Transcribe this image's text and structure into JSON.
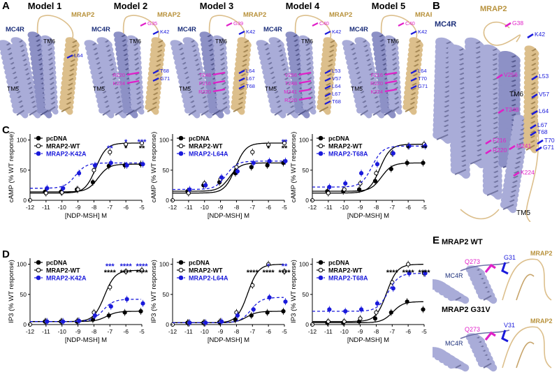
{
  "panel_letters": {
    "a": "A",
    "b": "B",
    "c": "C",
    "d": "D",
    "e": "E"
  },
  "panel_a": {
    "models": [
      {
        "title": "Model 1",
        "tm6": "TM6",
        "tm5": "TM5",
        "mc4r": [],
        "mrap2": [
          {
            "t": "L64",
            "c": "blue"
          }
        ]
      },
      {
        "title": "Model 2",
        "tm6": "TM6",
        "tm5": "TM5",
        "mc4r": [
          {
            "t": "R220",
            "c": "magenta"
          },
          {
            "t": "K224",
            "c": "magenta"
          }
        ],
        "mrap2": [
          {
            "t": "G35",
            "c": "magenta"
          },
          {
            "t": "K42",
            "c": "blue"
          },
          {
            "t": "T68",
            "c": "blue"
          },
          {
            "t": "G71",
            "c": "blue"
          }
        ]
      },
      {
        "title": "Model 3",
        "tm6": "TM6",
        "tm5": "TM5",
        "mc4r": [
          {
            "t": "T248",
            "c": "magenta"
          },
          {
            "t": "F216",
            "c": "magenta"
          },
          {
            "t": "R220",
            "c": "magenta"
          }
        ],
        "mrap2": [
          {
            "t": "G39",
            "c": "magenta"
          },
          {
            "t": "K42",
            "c": "blue"
          },
          {
            "t": "L64",
            "c": "blue"
          },
          {
            "t": "L67",
            "c": "blue"
          },
          {
            "t": "T68",
            "c": "blue"
          }
        ]
      },
      {
        "title": "Model 4",
        "tm6": "TM6",
        "tm5": "TM5",
        "mc4r": [
          {
            "t": "V256",
            "c": "magenta"
          },
          {
            "t": "T248",
            "c": "magenta"
          },
          {
            "t": "M241",
            "c": "magenta"
          },
          {
            "t": "R220",
            "c": "magenta"
          }
        ],
        "mrap2": [
          {
            "t": "C40",
            "c": "magenta"
          },
          {
            "t": "K42",
            "c": "blue"
          },
          {
            "t": "L53",
            "c": "blue"
          },
          {
            "t": "V57",
            "c": "blue"
          },
          {
            "t": "L64",
            "c": "blue"
          },
          {
            "t": "L67",
            "c": "blue"
          },
          {
            "t": "T68",
            "c": "blue"
          }
        ]
      },
      {
        "title": "Model 5",
        "tm6": "TM6",
        "tm5": "TM5",
        "mc4r": [
          {
            "t": "F216",
            "c": "magenta"
          },
          {
            "t": "R220",
            "c": "magenta"
          },
          {
            "t": "K224",
            "c": "magenta"
          }
        ],
        "mrap2": [
          {
            "t": "C40",
            "c": "magenta"
          },
          {
            "t": "K42",
            "c": "blue"
          },
          {
            "t": "L64",
            "c": "blue"
          },
          {
            "t": "T70",
            "c": "blue"
          },
          {
            "t": "G71",
            "c": "blue"
          }
        ]
      }
    ],
    "mc4r_label": "MC4R",
    "mrap2_label": "MRAP2"
  },
  "panel_b": {
    "mc4r_label": "MC4R",
    "mrap2_label": "MRAP2",
    "tm6": "TM6",
    "tm5": "TM5",
    "residues": [
      {
        "t": "G38",
        "c": "magenta"
      },
      {
        "t": "K42",
        "c": "blue"
      },
      {
        "t": "V256",
        "c": "magenta"
      },
      {
        "t": "L53",
        "c": "blue"
      },
      {
        "t": "V57",
        "c": "blue"
      },
      {
        "t": "T248",
        "c": "magenta"
      },
      {
        "t": "L64",
        "c": "blue"
      },
      {
        "t": "L67",
        "c": "blue"
      },
      {
        "t": "T68",
        "c": "blue"
      },
      {
        "t": "F216",
        "c": "magenta"
      },
      {
        "t": "M241",
        "c": "magenta"
      },
      {
        "t": "T70",
        "c": "blue"
      },
      {
        "t": "R220",
        "c": "magenta"
      },
      {
        "t": "G71",
        "c": "blue"
      },
      {
        "t": "K224",
        "c": "magenta"
      }
    ]
  },
  "panel_e": {
    "wt": {
      "title": "MRAP2 WT",
      "mrap2": "MRAP2",
      "mc4r": "MC4R",
      "res_mrap2": "G31",
      "res_mc4r": "Q273"
    },
    "mut": {
      "title": "MRAP2 G31V",
      "mrap2": "MRAP2",
      "mc4r": "MC4R",
      "res_mrap2": "V31",
      "res_mc4r": "Q273"
    }
  },
  "colors": {
    "blue": "#1a1adb",
    "magenta": "#e020c8",
    "helix_mc4r": "#a9acd8",
    "helix_mrap2": "#dcbf8c",
    "black": "#000000"
  },
  "chart_data": [
    {
      "type": "line",
      "panel": "C",
      "ylabel": "cAMP (% WT response)",
      "xlabel": "[NDP-MSH] M",
      "xticks": [
        "-12",
        "-11",
        "-10",
        "-9",
        "-8",
        "-7",
        "-6",
        "-5"
      ],
      "xlim": [
        -12,
        -5
      ],
      "yticks": [
        "0",
        "50",
        "100"
      ],
      "ylim": [
        0,
        100
      ],
      "series": [
        {
          "name": "pcDNA",
          "x": [
            -11,
            -10,
            -9,
            -8,
            -7,
            -6,
            -5
          ],
          "values": [
            14,
            14,
            18,
            30,
            57,
            58,
            60
          ]
        },
        {
          "name": "MRAP2-WT",
          "x": [
            -11,
            -10,
            -9,
            -8,
            -7,
            -6,
            -5
          ],
          "values": [
            12,
            13,
            18,
            50,
            80,
            93,
            95
          ]
        },
        {
          "name": "MRAP2-K42A",
          "x": [
            -11,
            -10,
            -9,
            -8,
            -7,
            -6,
            -5
          ],
          "values": [
            20,
            20,
            45,
            58,
            62,
            58,
            60
          ]
        }
      ],
      "annotations": [
        {
          "x": -7,
          "text": "**",
          "color": "blue"
        },
        {
          "x": -6,
          "text": "*",
          "color": "blue"
        },
        {
          "x": -6,
          "text": "*",
          "color": "black"
        },
        {
          "x": -5,
          "text": "***",
          "color": "blue"
        },
        {
          "x": -5,
          "text": "**",
          "color": "black"
        }
      ]
    },
    {
      "type": "line",
      "panel": "C",
      "ylabel": "cAMP (% WT response)",
      "xlabel": "[NDP-MSH] M",
      "xticks": [
        "-12",
        "-11",
        "-10",
        "-9",
        "-8",
        "-7",
        "-6",
        "-5"
      ],
      "xlim": [
        -12,
        -5
      ],
      "yticks": [
        "0",
        "50",
        "100"
      ],
      "ylim": [
        0,
        100
      ],
      "series": [
        {
          "name": "pcDNA",
          "x": [
            -11,
            -10,
            -9,
            -8,
            -7,
            -6,
            -5
          ],
          "values": [
            15,
            25,
            30,
            45,
            55,
            58,
            62
          ]
        },
        {
          "name": "MRAP2-WT",
          "x": [
            -11,
            -10,
            -9,
            -8,
            -7,
            -6,
            -5
          ],
          "values": [
            12,
            28,
            35,
            55,
            80,
            92,
            95
          ]
        },
        {
          "name": "MRAP2-L64A",
          "x": [
            -11,
            -10,
            -9,
            -8,
            -7,
            -6,
            -5
          ],
          "values": [
            18,
            25,
            38,
            48,
            62,
            65,
            65
          ]
        }
      ],
      "annotations": [
        {
          "x": -6,
          "text": "*",
          "color": "black"
        },
        {
          "x": -5,
          "text": "**",
          "color": "blue"
        },
        {
          "x": -5,
          "text": "**",
          "color": "black"
        }
      ]
    },
    {
      "type": "line",
      "panel": "C",
      "ylabel": "cAMP (% WT response)",
      "xlabel": "[NDP-MSH] M",
      "xticks": [
        "-12",
        "-11",
        "-10",
        "-9",
        "-8",
        "-7",
        "-6",
        "-5"
      ],
      "xlim": [
        -12,
        -5
      ],
      "yticks": [
        "0",
        "50",
        "100"
      ],
      "ylim": [
        0,
        100
      ],
      "series": [
        {
          "name": "pcDNA",
          "x": [
            -11,
            -10,
            -9,
            -8,
            -7,
            -6,
            -5
          ],
          "values": [
            15,
            15,
            18,
            32,
            52,
            62,
            62
          ]
        },
        {
          "name": "MRAP2-WT",
          "x": [
            -11,
            -10,
            -9,
            -8,
            -7,
            -6,
            -5
          ],
          "values": [
            12,
            18,
            28,
            45,
            78,
            90,
            93
          ]
        },
        {
          "name": "MRAP2-T68A",
          "x": [
            -11,
            -10,
            -9,
            -8,
            -7,
            -6,
            -5
          ],
          "values": [
            22,
            28,
            45,
            60,
            78,
            90,
            90
          ]
        }
      ],
      "annotations": [
        {
          "x": -6,
          "text": "*",
          "color": "black"
        },
        {
          "x": -5,
          "text": "**",
          "color": "black"
        }
      ]
    },
    {
      "type": "line",
      "panel": "D",
      "ylabel": "IP3 (% WT response)",
      "xlabel": "[NDP-MSH] M",
      "xticks": [
        "-12",
        "-11",
        "-10",
        "-9",
        "-8",
        "-7",
        "-6",
        "-5"
      ],
      "xlim": [
        -12,
        -5
      ],
      "yticks": [
        "0",
        "50",
        "100"
      ],
      "ylim": [
        0,
        100
      ],
      "series": [
        {
          "name": "pcDNA",
          "x": [
            -11,
            -10,
            -9,
            -8,
            -7,
            -6,
            -5
          ],
          "values": [
            5,
            5,
            5,
            8,
            15,
            20,
            22
          ]
        },
        {
          "name": "MRAP2-WT",
          "x": [
            -11,
            -10,
            -9,
            -8,
            -7,
            -6,
            -5
          ],
          "values": [
            5,
            5,
            6,
            20,
            62,
            88,
            90
          ]
        },
        {
          "name": "MRAP2-K42A",
          "x": [
            -11,
            -10,
            -9,
            -8,
            -7,
            -6,
            -5
          ],
          "values": [
            5,
            5,
            6,
            15,
            30,
            42,
            35
          ]
        }
      ],
      "annotations": [
        {
          "x": -7,
          "text": "***",
          "color": "blue"
        },
        {
          "x": -7,
          "text": "****",
          "color": "black"
        },
        {
          "x": -6,
          "text": "****",
          "color": "blue"
        },
        {
          "x": -6,
          "text": "****",
          "color": "black"
        },
        {
          "x": -5,
          "text": "****",
          "color": "blue"
        },
        {
          "x": -5,
          "text": "****",
          "color": "black"
        }
      ]
    },
    {
      "type": "line",
      "panel": "D",
      "ylabel": "IP3 (% WT response)",
      "xlabel": "[NDP-MSH] M",
      "xticks": [
        "-12",
        "-11",
        "-10",
        "-9",
        "-8",
        "-7",
        "-6",
        "-5"
      ],
      "xlim": [
        -12,
        -5
      ],
      "yticks": [
        "0",
        "50",
        "100"
      ],
      "ylim": [
        0,
        100
      ],
      "series": [
        {
          "name": "pcDNA",
          "x": [
            -11,
            -10,
            -9,
            -8,
            -7,
            -6,
            -5
          ],
          "values": [
            3,
            3,
            4,
            8,
            15,
            20,
            22
          ]
        },
        {
          "name": "MRAP2-WT",
          "x": [
            -11,
            -10,
            -9,
            -8,
            -7,
            -6,
            -5
          ],
          "values": [
            3,
            3,
            5,
            20,
            65,
            100,
            88
          ]
        },
        {
          "name": "MRAP2-L64A",
          "x": [
            -11,
            -10,
            -9,
            -8,
            -7,
            -6,
            -5
          ],
          "values": [
            3,
            3,
            5,
            15,
            25,
            45,
            38
          ]
        }
      ],
      "annotations": [
        {
          "x": -7,
          "text": "****",
          "color": "black"
        },
        {
          "x": -6,
          "text": "*",
          "color": "blue"
        },
        {
          "x": -6,
          "text": "****",
          "color": "black"
        },
        {
          "x": -5,
          "text": "**",
          "color": "blue"
        },
        {
          "x": -5,
          "text": "****",
          "color": "black"
        }
      ]
    },
    {
      "type": "line",
      "panel": "D",
      "ylabel": "IP3 (% WT response)",
      "xlabel": "[NDP-MSH] M",
      "xticks": [
        "-12",
        "-11",
        "-10",
        "-9",
        "-8",
        "-7",
        "-6",
        "-5"
      ],
      "xlim": [
        -12,
        -5
      ],
      "yticks": [
        "0",
        "50",
        "100"
      ],
      "ylim": [
        0,
        100
      ],
      "series": [
        {
          "name": "pcDNA",
          "x": [
            -11,
            -10,
            -9,
            -8,
            -7,
            -6,
            -5
          ],
          "values": [
            3,
            3,
            5,
            10,
            20,
            38,
            25
          ]
        },
        {
          "name": "MRAP2-WT",
          "x": [
            -11,
            -10,
            -9,
            -8,
            -7,
            -6,
            -5
          ],
          "values": [
            5,
            5,
            10,
            20,
            70,
            100,
            85
          ]
        },
        {
          "name": "MRAP2-T68A",
          "x": [
            -11,
            -10,
            -9,
            -8,
            -7,
            -6,
            -5
          ],
          "values": [
            25,
            22,
            25,
            35,
            60,
            85,
            85
          ]
        }
      ],
      "annotations": [
        {
          "x": -7,
          "text": "****",
          "color": "black"
        },
        {
          "x": -6,
          "text": "****",
          "color": "black"
        },
        {
          "x": -5,
          "text": "****",
          "color": "black"
        }
      ]
    }
  ]
}
